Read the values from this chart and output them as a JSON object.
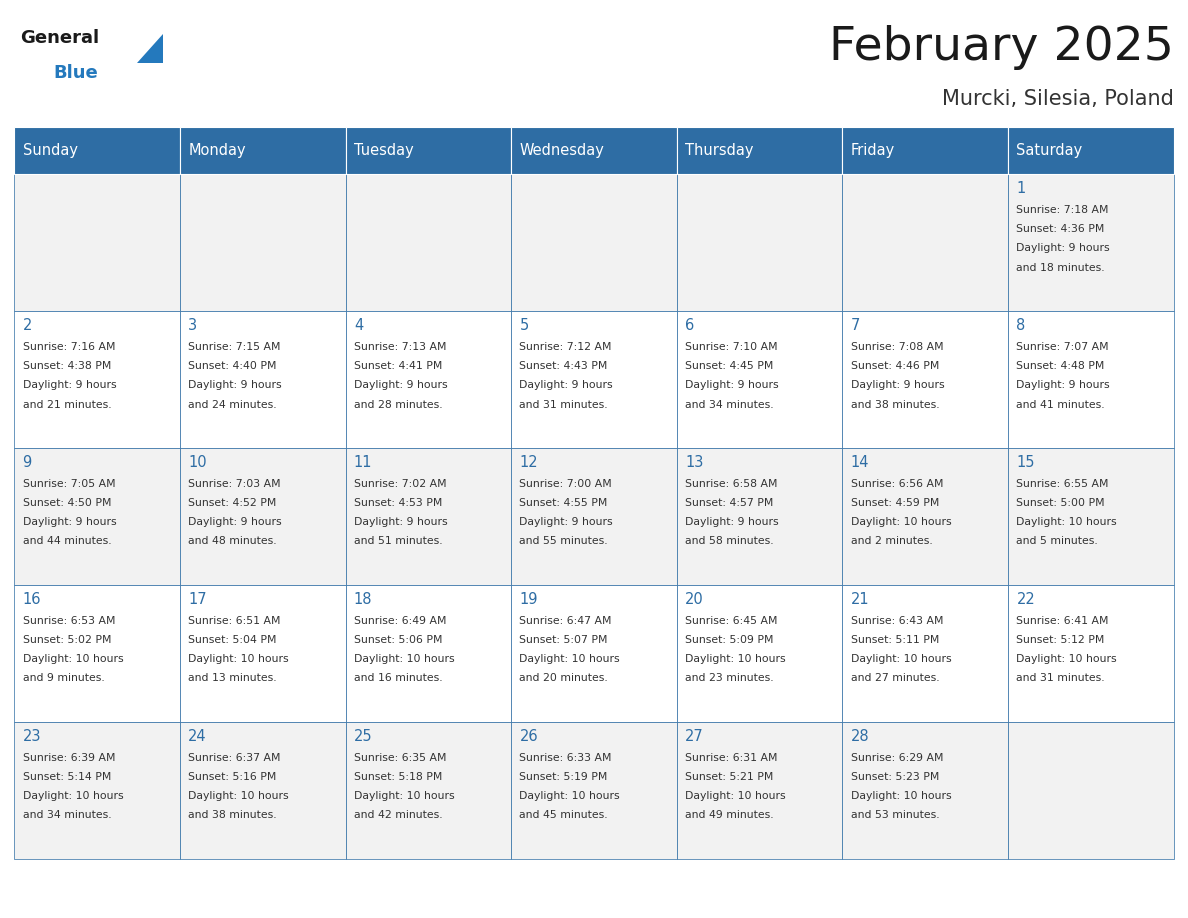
{
  "title": "February 2025",
  "subtitle": "Murcki, Silesia, Poland",
  "header_color": "#2E6DA4",
  "header_text_color": "#FFFFFF",
  "cell_bg_color": "#F2F2F2",
  "alt_cell_bg_color": "#FFFFFF",
  "border_color": "#2E6DA4",
  "days_of_week": [
    "Sunday",
    "Monday",
    "Tuesday",
    "Wednesday",
    "Thursday",
    "Friday",
    "Saturday"
  ],
  "title_color": "#1a1a1a",
  "subtitle_color": "#333333",
  "day_num_color": "#2E6DA4",
  "cell_text_color": "#333333",
  "logo_general_color": "#1a1a1a",
  "logo_blue_color": "#2479BD",
  "calendar_data": [
    [
      null,
      null,
      null,
      null,
      null,
      null,
      {
        "day": 1,
        "sunrise": "7:18 AM",
        "sunset": "4:36 PM",
        "daylight_line1": "Daylight: 9 hours",
        "daylight_line2": "and 18 minutes."
      }
    ],
    [
      {
        "day": 2,
        "sunrise": "7:16 AM",
        "sunset": "4:38 PM",
        "daylight_line1": "Daylight: 9 hours",
        "daylight_line2": "and 21 minutes."
      },
      {
        "day": 3,
        "sunrise": "7:15 AM",
        "sunset": "4:40 PM",
        "daylight_line1": "Daylight: 9 hours",
        "daylight_line2": "and 24 minutes."
      },
      {
        "day": 4,
        "sunrise": "7:13 AM",
        "sunset": "4:41 PM",
        "daylight_line1": "Daylight: 9 hours",
        "daylight_line2": "and 28 minutes."
      },
      {
        "day": 5,
        "sunrise": "7:12 AM",
        "sunset": "4:43 PM",
        "daylight_line1": "Daylight: 9 hours",
        "daylight_line2": "and 31 minutes."
      },
      {
        "day": 6,
        "sunrise": "7:10 AM",
        "sunset": "4:45 PM",
        "daylight_line1": "Daylight: 9 hours",
        "daylight_line2": "and 34 minutes."
      },
      {
        "day": 7,
        "sunrise": "7:08 AM",
        "sunset": "4:46 PM",
        "daylight_line1": "Daylight: 9 hours",
        "daylight_line2": "and 38 minutes."
      },
      {
        "day": 8,
        "sunrise": "7:07 AM",
        "sunset": "4:48 PM",
        "daylight_line1": "Daylight: 9 hours",
        "daylight_line2": "and 41 minutes."
      }
    ],
    [
      {
        "day": 9,
        "sunrise": "7:05 AM",
        "sunset": "4:50 PM",
        "daylight_line1": "Daylight: 9 hours",
        "daylight_line2": "and 44 minutes."
      },
      {
        "day": 10,
        "sunrise": "7:03 AM",
        "sunset": "4:52 PM",
        "daylight_line1": "Daylight: 9 hours",
        "daylight_line2": "and 48 minutes."
      },
      {
        "day": 11,
        "sunrise": "7:02 AM",
        "sunset": "4:53 PM",
        "daylight_line1": "Daylight: 9 hours",
        "daylight_line2": "and 51 minutes."
      },
      {
        "day": 12,
        "sunrise": "7:00 AM",
        "sunset": "4:55 PM",
        "daylight_line1": "Daylight: 9 hours",
        "daylight_line2": "and 55 minutes."
      },
      {
        "day": 13,
        "sunrise": "6:58 AM",
        "sunset": "4:57 PM",
        "daylight_line1": "Daylight: 9 hours",
        "daylight_line2": "and 58 minutes."
      },
      {
        "day": 14,
        "sunrise": "6:56 AM",
        "sunset": "4:59 PM",
        "daylight_line1": "Daylight: 10 hours",
        "daylight_line2": "and 2 minutes."
      },
      {
        "day": 15,
        "sunrise": "6:55 AM",
        "sunset": "5:00 PM",
        "daylight_line1": "Daylight: 10 hours",
        "daylight_line2": "and 5 minutes."
      }
    ],
    [
      {
        "day": 16,
        "sunrise": "6:53 AM",
        "sunset": "5:02 PM",
        "daylight_line1": "Daylight: 10 hours",
        "daylight_line2": "and 9 minutes."
      },
      {
        "day": 17,
        "sunrise": "6:51 AM",
        "sunset": "5:04 PM",
        "daylight_line1": "Daylight: 10 hours",
        "daylight_line2": "and 13 minutes."
      },
      {
        "day": 18,
        "sunrise": "6:49 AM",
        "sunset": "5:06 PM",
        "daylight_line1": "Daylight: 10 hours",
        "daylight_line2": "and 16 minutes."
      },
      {
        "day": 19,
        "sunrise": "6:47 AM",
        "sunset": "5:07 PM",
        "daylight_line1": "Daylight: 10 hours",
        "daylight_line2": "and 20 minutes."
      },
      {
        "day": 20,
        "sunrise": "6:45 AM",
        "sunset": "5:09 PM",
        "daylight_line1": "Daylight: 10 hours",
        "daylight_line2": "and 23 minutes."
      },
      {
        "day": 21,
        "sunrise": "6:43 AM",
        "sunset": "5:11 PM",
        "daylight_line1": "Daylight: 10 hours",
        "daylight_line2": "and 27 minutes."
      },
      {
        "day": 22,
        "sunrise": "6:41 AM",
        "sunset": "5:12 PM",
        "daylight_line1": "Daylight: 10 hours",
        "daylight_line2": "and 31 minutes."
      }
    ],
    [
      {
        "day": 23,
        "sunrise": "6:39 AM",
        "sunset": "5:14 PM",
        "daylight_line1": "Daylight: 10 hours",
        "daylight_line2": "and 34 minutes."
      },
      {
        "day": 24,
        "sunrise": "6:37 AM",
        "sunset": "5:16 PM",
        "daylight_line1": "Daylight: 10 hours",
        "daylight_line2": "and 38 minutes."
      },
      {
        "day": 25,
        "sunrise": "6:35 AM",
        "sunset": "5:18 PM",
        "daylight_line1": "Daylight: 10 hours",
        "daylight_line2": "and 42 minutes."
      },
      {
        "day": 26,
        "sunrise": "6:33 AM",
        "sunset": "5:19 PM",
        "daylight_line1": "Daylight: 10 hours",
        "daylight_line2": "and 45 minutes."
      },
      {
        "day": 27,
        "sunrise": "6:31 AM",
        "sunset": "5:21 PM",
        "daylight_line1": "Daylight: 10 hours",
        "daylight_line2": "and 49 minutes."
      },
      {
        "day": 28,
        "sunrise": "6:29 AM",
        "sunset": "5:23 PM",
        "daylight_line1": "Daylight: 10 hours",
        "daylight_line2": "and 53 minutes."
      },
      null
    ]
  ]
}
